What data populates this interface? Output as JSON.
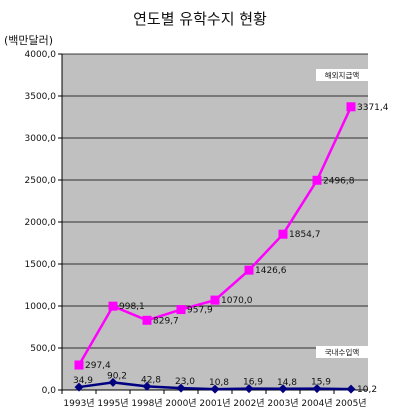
{
  "chart_data": {
    "type": "line",
    "title": "연도별 유학수지 현황",
    "unit_label": "(백만달러)",
    "categories": [
      "1993년",
      "1995년",
      "1998년",
      "2000년",
      "2001년",
      "2002년",
      "2003년",
      "2004년",
      "2005년"
    ],
    "ylim": [
      0,
      4000
    ],
    "ytick_values": [
      0,
      500,
      1000,
      1500,
      2000,
      2500,
      3000,
      3500,
      4000
    ],
    "ytick_labels": [
      "0,0",
      "500,0",
      "1000,0",
      "1500,0",
      "2000,0",
      "2500,0",
      "3000,0",
      "3500,0",
      "4000,0"
    ],
    "grid": true,
    "plot_background": "#c0c0c0",
    "series": [
      {
        "name": "해외지급액",
        "color": "#ff00ff",
        "marker": "square",
        "values": [
          297.4,
          998.1,
          829.7,
          957.9,
          1070.0,
          1426.6,
          1854.7,
          2496.8,
          3371.4
        ],
        "value_labels": [
          "297,4",
          "998,1",
          "829,7",
          "957,9",
          "1070,0",
          "1426,6",
          "1854,7",
          "2496,8",
          "3371,4"
        ]
      },
      {
        "name": "국내수입액",
        "color": "#000080",
        "marker": "diamond",
        "values": [
          34.9,
          90.2,
          42.8,
          23.0,
          10.8,
          16.9,
          14.8,
          15.9,
          10.2
        ],
        "value_labels": [
          "34,9",
          "90,2",
          "42,8",
          "23,0",
          "10,8",
          "16,9",
          "14,8",
          "15,9",
          "10,2"
        ]
      }
    ]
  }
}
